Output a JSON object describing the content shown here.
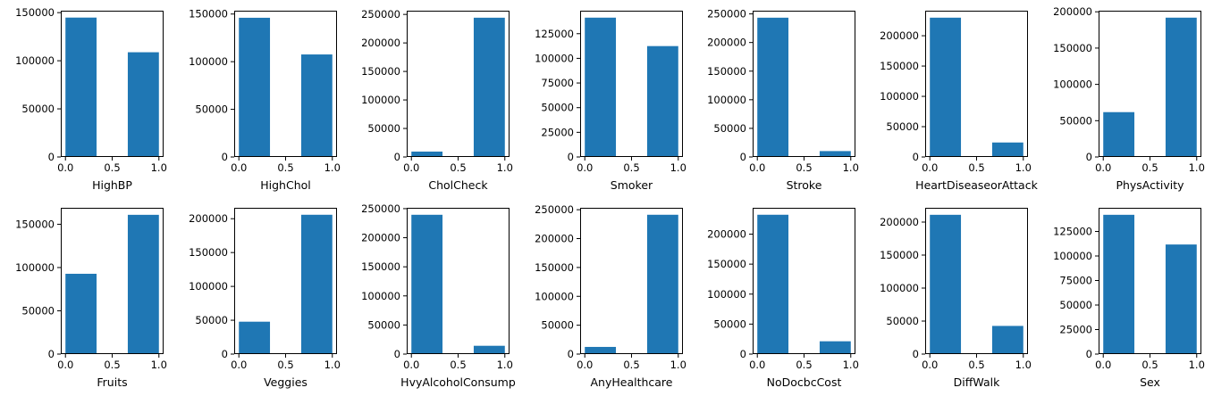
{
  "colors": {
    "bar": "#1f77b4",
    "axis": "#000000",
    "background": "#ffffff"
  },
  "chart_data": [
    {
      "type": "bar",
      "xlabel": "HighBP",
      "bins": [
        {
          "x0": 0.0,
          "x1": 0.333,
          "count": 144851
        },
        {
          "x0": 0.667,
          "x1": 1.0,
          "count": 108829
        }
      ],
      "xlim": [
        -0.05,
        1.05
      ],
      "ylim": [
        0,
        152000
      ],
      "xticks": [
        {
          "v": 0.0,
          "l": "0.0"
        },
        {
          "v": 0.5,
          "l": "0.5"
        },
        {
          "v": 1.0,
          "l": "1.0"
        }
      ],
      "yticks": [
        {
          "v": 0,
          "l": "0"
        },
        {
          "v": 50000,
          "l": "50000"
        },
        {
          "v": 100000,
          "l": "100000"
        },
        {
          "v": 150000,
          "l": "150000"
        }
      ]
    },
    {
      "type": "bar",
      "xlabel": "HighChol",
      "bins": [
        {
          "x0": 0.0,
          "x1": 0.333,
          "count": 146089
        },
        {
          "x0": 0.667,
          "x1": 1.0,
          "count": 107591
        }
      ],
      "xlim": [
        -0.05,
        1.05
      ],
      "ylim": [
        0,
        153500
      ],
      "xticks": [
        {
          "v": 0.0,
          "l": "0.0"
        },
        {
          "v": 0.5,
          "l": "0.5"
        },
        {
          "v": 1.0,
          "l": "1.0"
        }
      ],
      "yticks": [
        {
          "v": 0,
          "l": "0"
        },
        {
          "v": 50000,
          "l": "50000"
        },
        {
          "v": 100000,
          "l": "100000"
        },
        {
          "v": 150000,
          "l": "150000"
        }
      ]
    },
    {
      "type": "bar",
      "xlabel": "CholCheck",
      "bins": [
        {
          "x0": 0.0,
          "x1": 0.333,
          "count": 9470
        },
        {
          "x0": 0.667,
          "x1": 1.0,
          "count": 244210
        }
      ],
      "xlim": [
        -0.05,
        1.05
      ],
      "ylim": [
        0,
        256500
      ],
      "xticks": [
        {
          "v": 0.0,
          "l": "0.0"
        },
        {
          "v": 0.5,
          "l": "0.5"
        },
        {
          "v": 1.0,
          "l": "1.0"
        }
      ],
      "yticks": [
        {
          "v": 0,
          "l": "0"
        },
        {
          "v": 50000,
          "l": "50000"
        },
        {
          "v": 100000,
          "l": "100000"
        },
        {
          "v": 150000,
          "l": "150000"
        },
        {
          "v": 200000,
          "l": "200000"
        },
        {
          "v": 250000,
          "l": "250000"
        }
      ]
    },
    {
      "type": "bar",
      "xlabel": "Smoker",
      "bins": [
        {
          "x0": 0.0,
          "x1": 0.333,
          "count": 141257
        },
        {
          "x0": 0.667,
          "x1": 1.0,
          "count": 112423
        }
      ],
      "xlim": [
        -0.05,
        1.05
      ],
      "ylim": [
        0,
        148300
      ],
      "xticks": [
        {
          "v": 0.0,
          "l": "0.0"
        },
        {
          "v": 0.5,
          "l": "0.5"
        },
        {
          "v": 1.0,
          "l": "1.0"
        }
      ],
      "yticks": [
        {
          "v": 0,
          "l": "0"
        },
        {
          "v": 25000,
          "l": "25000"
        },
        {
          "v": 50000,
          "l": "50000"
        },
        {
          "v": 75000,
          "l": "75000"
        },
        {
          "v": 100000,
          "l": "100000"
        },
        {
          "v": 125000,
          "l": "125000"
        }
      ]
    },
    {
      "type": "bar",
      "xlabel": "Stroke",
      "bins": [
        {
          "x0": 0.0,
          "x1": 0.333,
          "count": 243388
        },
        {
          "x0": 0.667,
          "x1": 1.0,
          "count": 10292
        }
      ],
      "xlim": [
        -0.05,
        1.05
      ],
      "ylim": [
        0,
        255600
      ],
      "xticks": [
        {
          "v": 0.0,
          "l": "0.0"
        },
        {
          "v": 0.5,
          "l": "0.5"
        },
        {
          "v": 1.0,
          "l": "1.0"
        }
      ],
      "yticks": [
        {
          "v": 0,
          "l": "0"
        },
        {
          "v": 50000,
          "l": "50000"
        },
        {
          "v": 100000,
          "l": "100000"
        },
        {
          "v": 150000,
          "l": "150000"
        },
        {
          "v": 200000,
          "l": "200000"
        },
        {
          "v": 250000,
          "l": "250000"
        }
      ]
    },
    {
      "type": "bar",
      "xlabel": "HeartDiseaseorAttack",
      "bins": [
        {
          "x0": 0.0,
          "x1": 0.333,
          "count": 229787
        },
        {
          "x0": 0.667,
          "x1": 1.0,
          "count": 23893
        }
      ],
      "xlim": [
        -0.05,
        1.05
      ],
      "ylim": [
        0,
        241300
      ],
      "xticks": [
        {
          "v": 0.0,
          "l": "0.0"
        },
        {
          "v": 0.5,
          "l": "0.5"
        },
        {
          "v": 1.0,
          "l": "1.0"
        }
      ],
      "yticks": [
        {
          "v": 0,
          "l": "0"
        },
        {
          "v": 50000,
          "l": "50000"
        },
        {
          "v": 100000,
          "l": "100000"
        },
        {
          "v": 150000,
          "l": "150000"
        },
        {
          "v": 200000,
          "l": "200000"
        }
      ]
    },
    {
      "type": "bar",
      "xlabel": "PhysActivity",
      "bins": [
        {
          "x0": 0.0,
          "x1": 0.333,
          "count": 61760
        },
        {
          "x0": 0.667,
          "x1": 1.0,
          "count": 191920
        }
      ],
      "xlim": [
        -0.05,
        1.05
      ],
      "ylim": [
        0,
        201500
      ],
      "xticks": [
        {
          "v": 0.0,
          "l": "0.0"
        },
        {
          "v": 0.5,
          "l": "0.5"
        },
        {
          "v": 1.0,
          "l": "1.0"
        }
      ],
      "yticks": [
        {
          "v": 0,
          "l": "0"
        },
        {
          "v": 50000,
          "l": "50000"
        },
        {
          "v": 100000,
          "l": "100000"
        },
        {
          "v": 150000,
          "l": "150000"
        },
        {
          "v": 200000,
          "l": "200000"
        }
      ]
    },
    {
      "type": "bar",
      "xlabel": "Fruits",
      "bins": [
        {
          "x0": 0.0,
          "x1": 0.333,
          "count": 92782
        },
        {
          "x0": 0.667,
          "x1": 1.0,
          "count": 160898
        }
      ],
      "xlim": [
        -0.05,
        1.05
      ],
      "ylim": [
        0,
        169000
      ],
      "xticks": [
        {
          "v": 0.0,
          "l": "0.0"
        },
        {
          "v": 0.5,
          "l": "0.5"
        },
        {
          "v": 1.0,
          "l": "1.0"
        }
      ],
      "yticks": [
        {
          "v": 0,
          "l": "0"
        },
        {
          "v": 50000,
          "l": "50000"
        },
        {
          "v": 100000,
          "l": "100000"
        },
        {
          "v": 150000,
          "l": "150000"
        }
      ]
    },
    {
      "type": "bar",
      "xlabel": "Veggies",
      "bins": [
        {
          "x0": 0.0,
          "x1": 0.333,
          "count": 47839
        },
        {
          "x0": 0.667,
          "x1": 1.0,
          "count": 205841
        }
      ],
      "xlim": [
        -0.05,
        1.05
      ],
      "ylim": [
        0,
        216100
      ],
      "xticks": [
        {
          "v": 0.0,
          "l": "0.0"
        },
        {
          "v": 0.5,
          "l": "0.5"
        },
        {
          "v": 1.0,
          "l": "1.0"
        }
      ],
      "yticks": [
        {
          "v": 0,
          "l": "0"
        },
        {
          "v": 50000,
          "l": "50000"
        },
        {
          "v": 100000,
          "l": "100000"
        },
        {
          "v": 150000,
          "l": "150000"
        },
        {
          "v": 200000,
          "l": "200000"
        }
      ]
    },
    {
      "type": "bar",
      "xlabel": "HvyAlcoholConsump",
      "bins": [
        {
          "x0": 0.0,
          "x1": 0.333,
          "count": 239424
        },
        {
          "x0": 0.667,
          "x1": 1.0,
          "count": 14256
        }
      ],
      "xlim": [
        -0.05,
        1.05
      ],
      "ylim": [
        0,
        251400
      ],
      "xticks": [
        {
          "v": 0.0,
          "l": "0.0"
        },
        {
          "v": 0.5,
          "l": "0.5"
        },
        {
          "v": 1.0,
          "l": "1.0"
        }
      ],
      "yticks": [
        {
          "v": 0,
          "l": "0"
        },
        {
          "v": 50000,
          "l": "50000"
        },
        {
          "v": 100000,
          "l": "100000"
        },
        {
          "v": 150000,
          "l": "150000"
        },
        {
          "v": 200000,
          "l": "200000"
        },
        {
          "v": 250000,
          "l": "250000"
        }
      ]
    },
    {
      "type": "bar",
      "xlabel": "AnyHealthcare",
      "bins": [
        {
          "x0": 0.0,
          "x1": 0.333,
          "count": 12417
        },
        {
          "x0": 0.667,
          "x1": 1.0,
          "count": 241263
        }
      ],
      "xlim": [
        -0.05,
        1.05
      ],
      "ylim": [
        0,
        253300
      ],
      "xticks": [
        {
          "v": 0.0,
          "l": "0.0"
        },
        {
          "v": 0.5,
          "l": "0.5"
        },
        {
          "v": 1.0,
          "l": "1.0"
        }
      ],
      "yticks": [
        {
          "v": 0,
          "l": "0"
        },
        {
          "v": 50000,
          "l": "50000"
        },
        {
          "v": 100000,
          "l": "100000"
        },
        {
          "v": 150000,
          "l": "150000"
        },
        {
          "v": 200000,
          "l": "200000"
        },
        {
          "v": 250000,
          "l": "250000"
        }
      ]
    },
    {
      "type": "bar",
      "xlabel": "NoDocbcCost",
      "bins": [
        {
          "x0": 0.0,
          "x1": 0.333,
          "count": 232326
        },
        {
          "x0": 0.667,
          "x1": 1.0,
          "count": 21354
        }
      ],
      "xlim": [
        -0.05,
        1.05
      ],
      "ylim": [
        0,
        243900
      ],
      "xticks": [
        {
          "v": 0.0,
          "l": "0.0"
        },
        {
          "v": 0.5,
          "l": "0.5"
        },
        {
          "v": 1.0,
          "l": "1.0"
        }
      ],
      "yticks": [
        {
          "v": 0,
          "l": "0"
        },
        {
          "v": 50000,
          "l": "50000"
        },
        {
          "v": 100000,
          "l": "100000"
        },
        {
          "v": 150000,
          "l": "150000"
        },
        {
          "v": 200000,
          "l": "200000"
        }
      ]
    },
    {
      "type": "bar",
      "xlabel": "DiffWalk",
      "bins": [
        {
          "x0": 0.0,
          "x1": 0.333,
          "count": 211005
        },
        {
          "x0": 0.667,
          "x1": 1.0,
          "count": 42675
        }
      ],
      "xlim": [
        -0.05,
        1.05
      ],
      "ylim": [
        0,
        221600
      ],
      "xticks": [
        {
          "v": 0.0,
          "l": "0.0"
        },
        {
          "v": 0.5,
          "l": "0.5"
        },
        {
          "v": 1.0,
          "l": "1.0"
        }
      ],
      "yticks": [
        {
          "v": 0,
          "l": "0"
        },
        {
          "v": 50000,
          "l": "50000"
        },
        {
          "v": 100000,
          "l": "100000"
        },
        {
          "v": 150000,
          "l": "150000"
        },
        {
          "v": 200000,
          "l": "200000"
        }
      ]
    },
    {
      "type": "bar",
      "xlabel": "Sex",
      "bins": [
        {
          "x0": 0.0,
          "x1": 0.333,
          "count": 141974
        },
        {
          "x0": 0.667,
          "x1": 1.0,
          "count": 111706
        }
      ],
      "xlim": [
        -0.05,
        1.05
      ],
      "ylim": [
        0,
        149100
      ],
      "xticks": [
        {
          "v": 0.0,
          "l": "0.0"
        },
        {
          "v": 0.5,
          "l": "0.5"
        },
        {
          "v": 1.0,
          "l": "1.0"
        }
      ],
      "yticks": [
        {
          "v": 0,
          "l": "0"
        },
        {
          "v": 25000,
          "l": "25000"
        },
        {
          "v": 50000,
          "l": "50000"
        },
        {
          "v": 75000,
          "l": "75000"
        },
        {
          "v": 100000,
          "l": "100000"
        },
        {
          "v": 125000,
          "l": "125000"
        }
      ]
    }
  ]
}
